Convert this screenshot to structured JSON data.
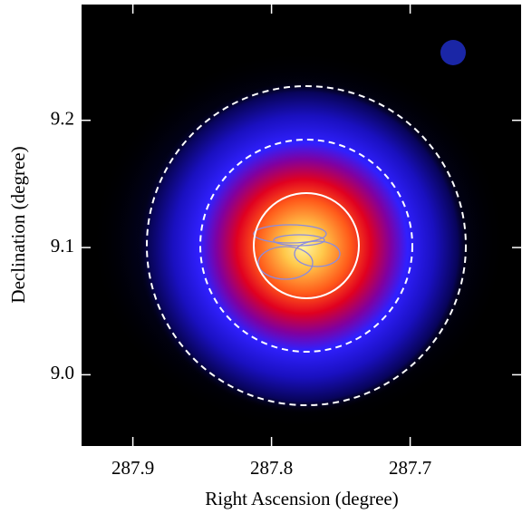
{
  "chart_data": {
    "type": "image",
    "xlabel": "Right Ascension (degree)",
    "ylabel": "Declination (degree)",
    "xlim": [
      287.937,
      287.62
    ],
    "ylim": [
      8.944,
      9.291
    ],
    "xticks": [
      287.9,
      287.8,
      287.7
    ],
    "yticks": [
      {
        "value": 9.0,
        "label": "9.0"
      },
      {
        "value": 9.1,
        "label": "9.1"
      },
      {
        "value": 9.2,
        "label": "9.2"
      }
    ]
  }
}
